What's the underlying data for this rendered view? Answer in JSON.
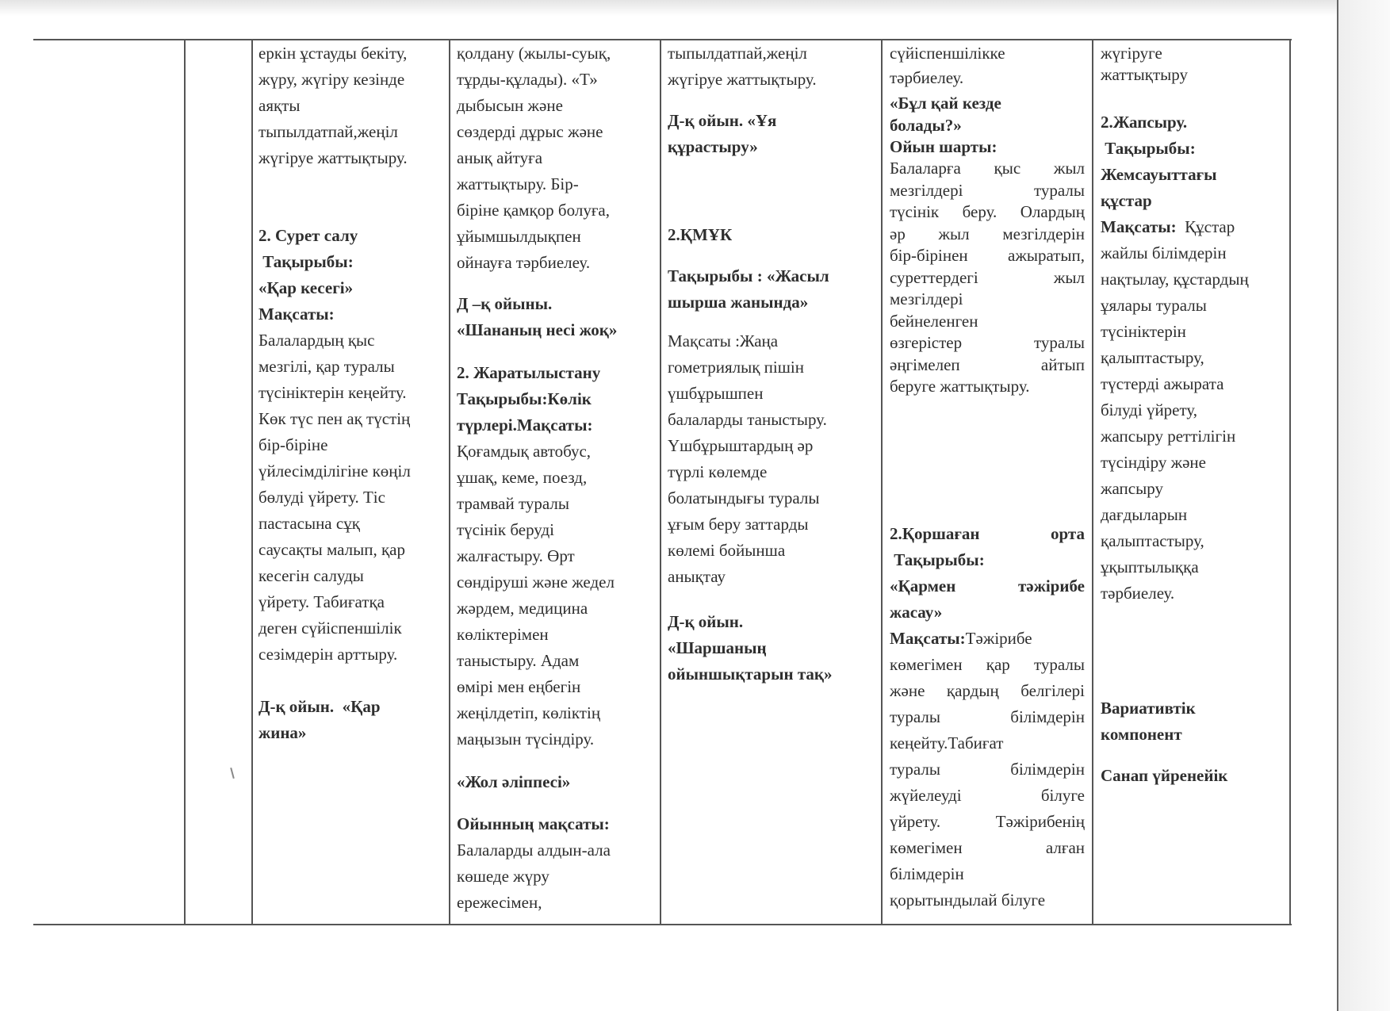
{
  "table": {
    "columns": [
      {
        "blocks": [
          {
            "bold": false,
            "lines": [
              "еркін ұстауды бекіту,",
              "жүру, жүгіру кезінде",
              "аяқты",
              "тыпылдатпай,жеңіл",
              "жүгіруе жаттықтыру."
            ]
          },
          {
            "bold": true,
            "lines": [
              "2. Сурет салу",
              " Тақырыбы:",
              "«Қар кесегі»",
              "Мақсаты:"
            ]
          },
          {
            "bold": false,
            "lines": [
              "Балалардың қыс",
              "мезгілі, қар туралы",
              "түсініктерін кеңейту.",
              "Көк түс пен ақ түстің",
              "бір-біріне",
              "үйлесімділігіне көңіл",
              "бөлуді үйрету. Тіс",
              "пастасына сұқ",
              "саусақты малып, қар",
              "кесегін салуды",
              "үйрету. Табиғатқа",
              "деген сүйіспеншілік",
              "сезімдерін арттыру."
            ]
          },
          {
            "bold": true,
            "lines": [
              "Д-қ ойын.  «Қар",
              "жина»"
            ]
          }
        ]
      },
      {
        "blocks": [
          {
            "bold": false,
            "lines": [
              "қолдану (жылы-суық,",
              "тұрды-құлады). «Т»",
              "дыбысын және",
              "сөздерді дұрыс және",
              "анық айтуға",
              "жаттықтыру. Бір-",
              "біріне қамқор болуға,",
              "ұйымшылдықпен",
              "ойнауға тәрбиелеу."
            ]
          },
          {
            "bold": true,
            "lines": [
              "Д –қ ойыны.",
              "«Шананың несі жоқ»"
            ]
          },
          {
            "bold": true,
            "lines": [
              "2. Жаратылыстану",
              "Тақырыбы:Көлік",
              "түрлері.Мақсаты:"
            ]
          },
          {
            "bold": false,
            "lines": [
              "Қоғамдық автобус,",
              "ұшақ, кеме, поезд,",
              "трамвай туралы",
              "түсінік беруді",
              "жалғастыру. Өрт",
              "сөндіруші және жедел",
              "жәрдем, медицина",
              "көліктерімен",
              "таныстыру. Адам",
              "өмірі мен еңбегін",
              "жеңілдетіп, көліктің",
              "маңызын түсіндіру."
            ]
          },
          {
            "bold": true,
            "lines": [
              "«Жол әліппесі»"
            ]
          },
          {
            "bold": true,
            "lines": [
              "Ойынның мақсаты:"
            ]
          },
          {
            "bold": false,
            "lines": [
              "Балаларды алдын-ала",
              "көшеде жүру",
              "ережесімен,"
            ]
          }
        ]
      },
      {
        "blocks": [
          {
            "bold": false,
            "lines": [
              "тыпылдатпай,жеңіл",
              "жүгіруе жаттықтыру."
            ]
          },
          {
            "bold": true,
            "lines": [
              "Д-қ ойын. «Ұя",
              "құрастыру»"
            ]
          },
          {
            "bold": true,
            "lines": [
              "2.ҚМҰК"
            ]
          },
          {
            "bold": true,
            "lines": [
              "Тақырыбы : «Жасыл",
              "шырша жанында»"
            ]
          },
          {
            "bold": false,
            "lines": [
              "Мақсаты :Жаңа",
              "гометриялық пішін",
              "үшбұрышпен",
              "балаларды таныстыру.",
              "Үшбұрыштардың әр",
              "түрлі көлемде",
              "болатындығы туралы",
              "ұғым беру заттарды",
              "көлемі бойынша",
              "анықтау"
            ]
          },
          {
            "bold": true,
            "lines": [
              "Д-қ ойын.",
              "«Шаршаның",
              "ойыншықтарын тақ»"
            ]
          }
        ]
      },
      {
        "blocks": [
          {
            "bold": false,
            "lines": [
              "сүйіспеншілікке",
              "тәрбиелеу."
            ]
          },
          {
            "bold": true,
            "lines": [
              "«Бұл қай кезде",
              "болады?»",
              "Ойын шарты:"
            ]
          },
          {
            "bold": false,
            "justify": true,
            "lines": [
              "Балаларға қыс жыл",
              "мезгілдері туралы",
              "түсінік беру. Олардың",
              "әр жыл мезгілдерін",
              "бір-бірінен ажыратып,",
              "суреттердегі жыл",
              "мезгілдері",
              "бейнеленген",
              "өзгерістер туралы",
              "әңгімелеп айтып",
              "беруге жаттықтыру."
            ]
          },
          {
            "bold": true,
            "justify": true,
            "lines": [
              "2.Қоршаған орта",
              " Тақырыбы:",
              "«Қармен тәжірибе",
              "жасау»"
            ]
          },
          {
            "bold": false,
            "justify": true,
            "lead": "Мақсаты:",
            "lines": [
              "Тәжірибе",
              "көмегімен қар туралы",
              "және қардың белгілері",
              "туралы білімдерін",
              "кеңейту.Табиғат",
              "туралы білімдерін",
              "жүйелеуді білуге",
              "үйрету. Тәжірибенің",
              "көмегімен алған",
              "білімдерін",
              "қорытындылай білуге"
            ]
          }
        ]
      },
      {
        "blocks": [
          {
            "bold": false,
            "lines": [
              "жүгіруге",
              "жаттықтыру"
            ]
          },
          {
            "bold": true,
            "lines": [
              "2.Жапсыру.",
              " Тақырыбы:",
              "Жемсауыттағы",
              "құстар"
            ]
          },
          {
            "bold": false,
            "lead": "Мақсаты:",
            "lines": [
              "  Құстар",
              "жайлы білімдерін",
              "нақтылау, құстардың",
              "ұялары туралы",
              "түсініктерін",
              "қалыптастыру,",
              "түстерді ажырата",
              "білуді үйрету,",
              "жапсыру реттілігін",
              "түсіндіру және",
              "жапсыру",
              "дағдыларын",
              "қалыптастыру,",
              "ұқыптылыққа",
              "тәрбиелеу."
            ]
          },
          {
            "bold": true,
            "lines": [
              "Вариативтік",
              "компонент"
            ]
          },
          {
            "bold": true,
            "lines": [
              "Санап үйренейік"
            ]
          }
        ]
      }
    ]
  }
}
